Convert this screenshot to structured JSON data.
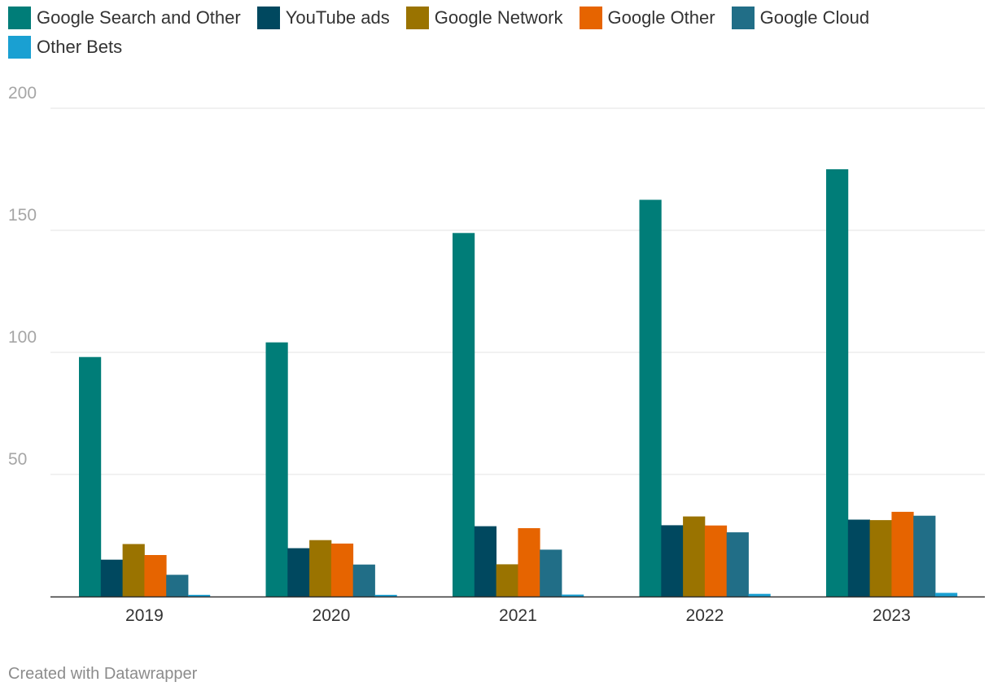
{
  "chart_data": {
    "type": "bar",
    "categories": [
      "2019",
      "2020",
      "2021",
      "2022",
      "2023"
    ],
    "series": [
      {
        "name": "Google Search and Other",
        "color": "#007d78",
        "values": [
          98.1,
          104.1,
          148.9,
          162.5,
          175.0
        ]
      },
      {
        "name": "YouTube ads",
        "color": "#00485f",
        "values": [
          15.1,
          19.8,
          28.8,
          29.2,
          31.5
        ]
      },
      {
        "name": "Google Network",
        "color": "#9a7300",
        "values": [
          21.5,
          23.1,
          13.2,
          32.8,
          31.3
        ]
      },
      {
        "name": "Google Other",
        "color": "#e66400",
        "values": [
          17.0,
          21.7,
          28.0,
          29.1,
          34.7
        ]
      },
      {
        "name": "Google Cloud",
        "color": "#216e87",
        "values": [
          8.9,
          13.1,
          19.2,
          26.3,
          33.1
        ]
      },
      {
        "name": "Other Bets",
        "color": "#1aa0d2",
        "values": [
          0.7,
          0.7,
          0.8,
          1.1,
          1.5
        ]
      }
    ],
    "y_ticks": [
      50,
      100,
      150,
      200
    ],
    "ylim": [
      0,
      200
    ],
    "grid": true,
    "legend_position": "top-left",
    "title": "",
    "xlabel": "",
    "ylabel": ""
  },
  "footer": {
    "credit": "Created with Datawrapper"
  }
}
